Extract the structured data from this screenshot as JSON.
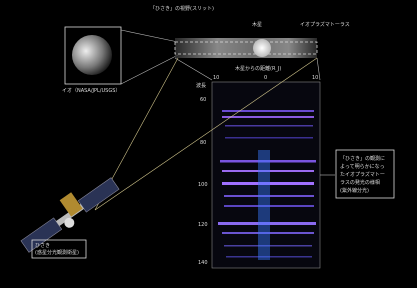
{
  "labels": {
    "slit": "「ひさき」の視野(スリット)",
    "jupiter": "木星",
    "torus": "イオプラズマトーラス",
    "distance_axis": "木星からの距離(R_J)",
    "distance_ticks": [
      "10",
      "0",
      "10"
    ],
    "wavelength_axis": "波長",
    "wavelength_ticks": [
      "60",
      "80",
      "100",
      "120",
      "140"
    ],
    "io_caption": "イオ（NASA/JPL/USGS）",
    "hisaki": [
      "ひさき",
      "(惑星分光観測衛星)"
    ],
    "result": [
      "「ひさき」の観測に",
      "よって明らかになっ",
      "たイオプラズマトー",
      "ラスの発光の様相",
      "(紫外線分光)"
    ]
  }
}
